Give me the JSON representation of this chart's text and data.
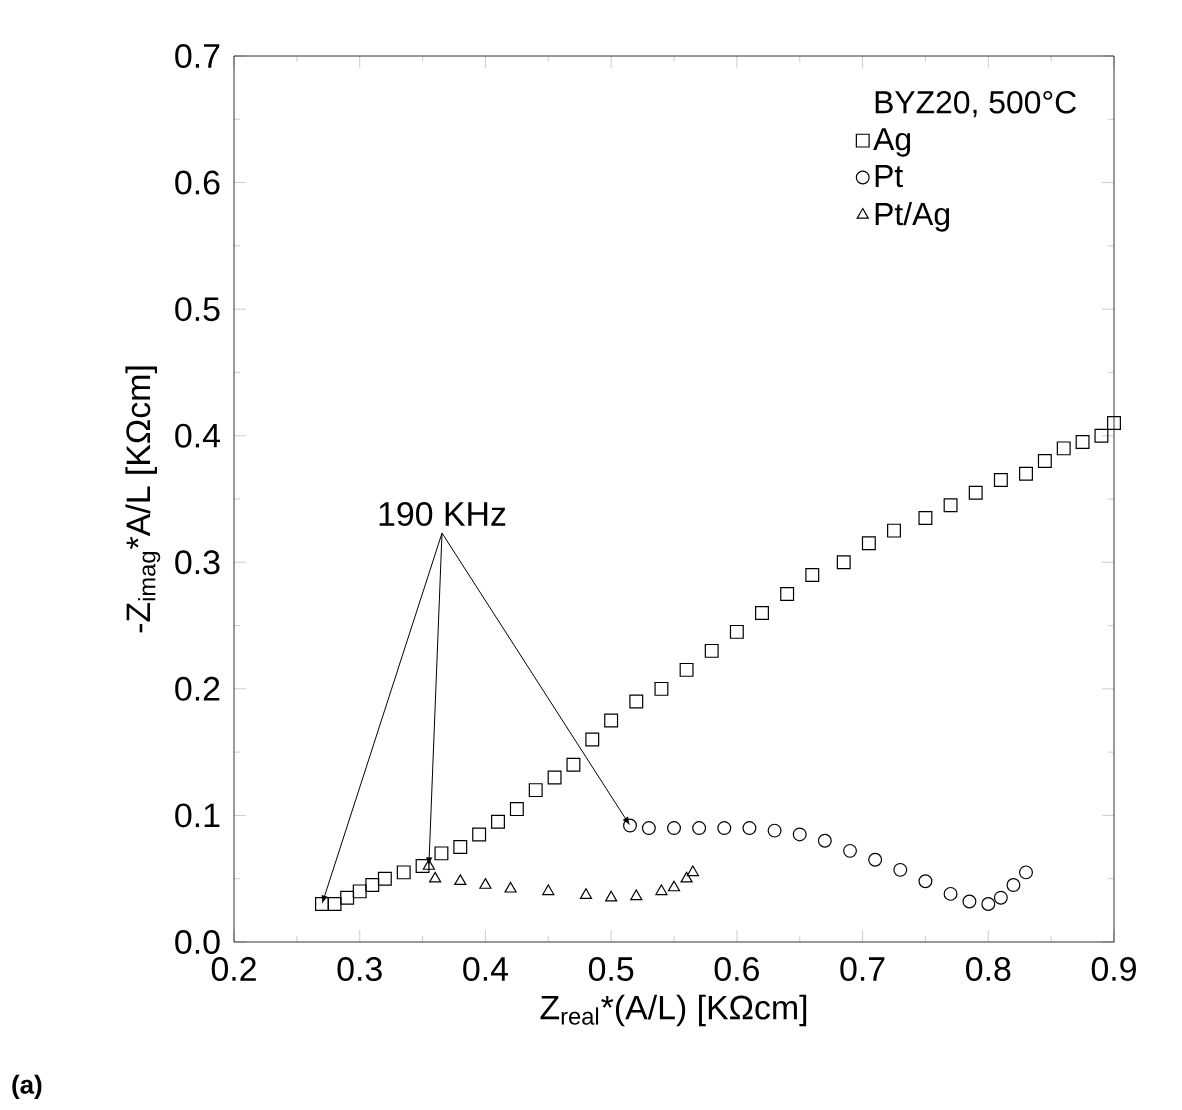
{
  "chart_data": {
    "type": "scatter",
    "xlabel": "Z$_{real}$*(A/L) [KΩcm]",
    "ylabel": "-Z$_{imag}$*A/L [KΩcm]",
    "legend_title": "BYZ20, 500°C",
    "legend": "top right",
    "xlim": [
      0.2,
      0.9
    ],
    "ylim": [
      0.0,
      0.7
    ],
    "xticks": [
      {
        "value": 0.2,
        "label": "0.2"
      },
      {
        "value": 0.3,
        "label": "0.3"
      },
      {
        "value": 0.4,
        "label": "0.4"
      },
      {
        "value": 0.5,
        "label": "0.5"
      },
      {
        "value": 0.6,
        "label": "0.6"
      },
      {
        "value": 0.7,
        "label": "0.7"
      },
      {
        "value": 0.8,
        "label": "0.8"
      },
      {
        "value": 0.9,
        "label": "0.9"
      }
    ],
    "yticks": [
      {
        "value": 0.0,
        "label": "0.0"
      },
      {
        "value": 0.1,
        "label": "0.1"
      },
      {
        "value": 0.2,
        "label": "0.2"
      },
      {
        "value": 0.3,
        "label": "0.3"
      },
      {
        "value": 0.4,
        "label": "0.4"
      },
      {
        "value": 0.5,
        "label": "0.5"
      },
      {
        "value": 0.6,
        "label": "0.6"
      },
      {
        "value": 0.7,
        "label": "0.7"
      }
    ],
    "grid": false,
    "series": [
      {
        "name": "Ag",
        "color": "#000000",
        "marker": "square",
        "x": [
          0.27,
          0.28,
          0.29,
          0.3,
          0.31,
          0.32,
          0.335,
          0.35,
          0.365,
          0.38,
          0.395,
          0.41,
          0.425,
          0.44,
          0.455,
          0.47,
          0.485,
          0.5,
          0.52,
          0.54,
          0.56,
          0.58,
          0.6,
          0.62,
          0.64,
          0.66,
          0.685,
          0.705,
          0.725,
          0.75,
          0.77,
          0.79,
          0.81,
          0.83,
          0.845,
          0.86,
          0.875,
          0.89,
          0.9
        ],
        "values": [
          0.03,
          0.03,
          0.035,
          0.04,
          0.045,
          0.05,
          0.055,
          0.06,
          0.07,
          0.075,
          0.085,
          0.095,
          0.105,
          0.12,
          0.13,
          0.14,
          0.16,
          0.175,
          0.19,
          0.2,
          0.215,
          0.23,
          0.245,
          0.26,
          0.275,
          0.29,
          0.3,
          0.315,
          0.325,
          0.335,
          0.345,
          0.355,
          0.365,
          0.37,
          0.38,
          0.39,
          0.395,
          0.4,
          0.41
        ]
      },
      {
        "name": "Pt",
        "color": "#000000",
        "marker": "circle",
        "x": [
          0.515,
          0.53,
          0.55,
          0.57,
          0.59,
          0.61,
          0.63,
          0.65,
          0.67,
          0.69,
          0.71,
          0.73,
          0.75,
          0.77,
          0.785,
          0.8,
          0.81,
          0.82,
          0.83
        ],
        "values": [
          0.092,
          0.09,
          0.09,
          0.09,
          0.09,
          0.09,
          0.088,
          0.085,
          0.08,
          0.072,
          0.065,
          0.057,
          0.048,
          0.038,
          0.032,
          0.03,
          0.035,
          0.045,
          0.055
        ]
      },
      {
        "name": "Pt/Ag",
        "color": "#000000",
        "marker": "triangle",
        "x": [
          0.355,
          0.36,
          0.38,
          0.4,
          0.42,
          0.45,
          0.48,
          0.5,
          0.52,
          0.54,
          0.55,
          0.56,
          0.565
        ],
        "values": [
          0.06,
          0.05,
          0.048,
          0.045,
          0.042,
          0.04,
          0.037,
          0.035,
          0.036,
          0.04,
          0.043,
          0.05,
          0.055
        ]
      }
    ],
    "annotations": [
      {
        "text": "190 KHz",
        "x": 0.27,
        "y": 0.03
      },
      "(a)"
    ]
  }
}
